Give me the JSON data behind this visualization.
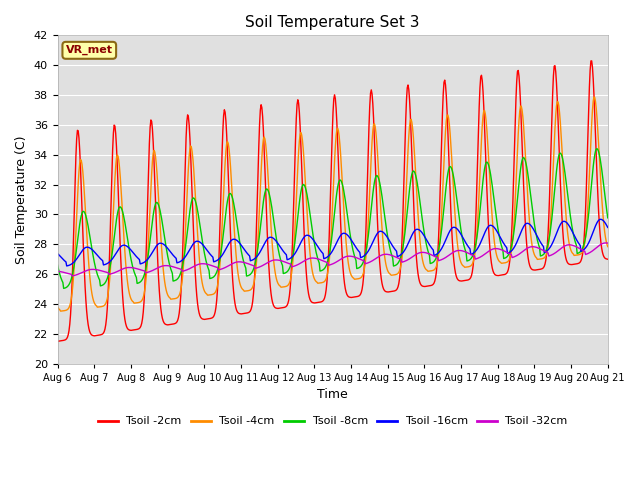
{
  "title": "Soil Temperature Set 3",
  "xlabel": "Time",
  "ylabel": "Soil Temperature (C)",
  "ylim": [
    20,
    42
  ],
  "plot_bg_color": "#e0e0e0",
  "grid_color": "white",
  "legend_label": "VR_met",
  "series_labels": [
    "Tsoil -2cm",
    "Tsoil -4cm",
    "Tsoil -8cm",
    "Tsoil -16cm",
    "Tsoil -32cm"
  ],
  "series_colors": [
    "#ff0000",
    "#ff8c00",
    "#00cc00",
    "#0000ff",
    "#cc00cc"
  ],
  "x_tick_labels": [
    "Aug 6",
    "Aug 7",
    "Aug 8",
    "Aug 9",
    "Aug 10",
    "Aug 11",
    "Aug 12",
    "Aug 13",
    "Aug 14",
    "Aug 15",
    "Aug 16",
    "Aug 17",
    "Aug 18",
    "Aug 19",
    "Aug 20",
    "Aug 21"
  ],
  "yticks": [
    20,
    22,
    24,
    26,
    28,
    30,
    32,
    34,
    36,
    38,
    40,
    42
  ]
}
